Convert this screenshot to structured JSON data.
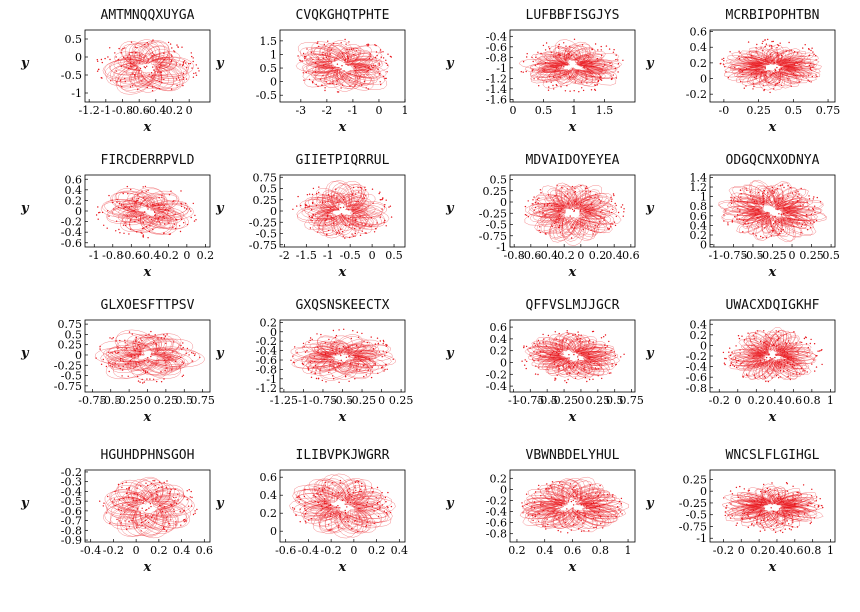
{
  "figure": {
    "accent_color": "#e8161c",
    "axis_color": "#000000",
    "background": "#ffffff"
  },
  "chart_data": [
    {
      "type": "scatter",
      "title": "AMTMNQQXUYGA",
      "xlabel": "x",
      "ylabel": "y",
      "xlim": [
        -1.25,
        0.25
      ],
      "ylim": [
        -1.25,
        0.75
      ],
      "xticks": [
        "-1.2",
        "-1",
        "-0.8",
        "-0.6",
        "-0.4",
        "-0.2",
        "0"
      ],
      "yticks": [
        "0.5",
        "0",
        "-0.5",
        "-1"
      ],
      "series": [
        {
          "color": "#e8161c"
        }
      ]
    },
    {
      "type": "scatter",
      "title": "CVQKGHQTPHTE",
      "xlabel": "x",
      "ylabel": "y",
      "xlim": [
        -3.8,
        1.0
      ],
      "ylim": [
        -0.75,
        1.9
      ],
      "xticks": [
        "-3",
        "-2",
        "-1",
        "0",
        "1"
      ],
      "yticks": [
        "1.5",
        "1",
        "0.5",
        "0",
        "-0.5"
      ],
      "series": [
        {
          "color": "#e8161c"
        }
      ]
    },
    {
      "type": "scatter",
      "title": "LUFBBFISGJYS",
      "xlabel": "x",
      "ylabel": "y",
      "xlim": [
        -0.05,
        2.0
      ],
      "ylim": [
        -1.65,
        -0.28
      ],
      "xticks": [
        "0",
        "0.5",
        "1",
        "1.5"
      ],
      "yticks": [
        "-0.4",
        "-0.6",
        "-0.8",
        "-1",
        "-1.2",
        "-1.4",
        "-1.6"
      ],
      "series": [
        {
          "color": "#e8161c"
        }
      ]
    },
    {
      "type": "scatter",
      "title": "MCRBIPOPHTBN",
      "xlabel": "x",
      "ylabel": "y",
      "xlim": [
        -0.1,
        0.8
      ],
      "ylim": [
        -0.3,
        0.62
      ],
      "xticks": [
        "-0",
        "0.5",
        "0.25",
        "0.75"
      ],
      "yticks": [
        "0.6",
        "0.4",
        "0.2",
        "0",
        "-0.2"
      ],
      "series": [
        {
          "color": "#e8161c"
        }
      ]
    },
    {
      "type": "scatter",
      "title": "FIRCDERRPVLD",
      "xlabel": "x",
      "ylabel": "y",
      "xlim": [
        -1.1,
        0.25
      ],
      "ylim": [
        -0.68,
        0.68
      ],
      "xticks": [
        "-1",
        "-0.8",
        "-0.6",
        "-0.4",
        "-0.2",
        "0",
        "0.2"
      ],
      "yticks": [
        "0.6",
        "0.4",
        "0.2",
        "0",
        "-0.2",
        "-0.4",
        "-0.6"
      ],
      "series": [
        {
          "color": "#e8161c"
        }
      ]
    },
    {
      "type": "scatter",
      "title": "GIIETPIQRRUL",
      "xlabel": "x",
      "ylabel": "y",
      "xlim": [
        -2.1,
        0.75
      ],
      "ylim": [
        -0.8,
        0.8
      ],
      "xticks": [
        "-2",
        "-1.5",
        "-1",
        "-0.5",
        "0",
        "0.5"
      ],
      "yticks": [
        "0.75",
        "0.5",
        "0.25",
        "0",
        "-0.25",
        "-0.5",
        "-0.75"
      ],
      "series": [
        {
          "color": "#e8161c"
        }
      ]
    },
    {
      "type": "scatter",
      "title": "MDVAIDOYEYEA",
      "xlabel": "x",
      "ylabel": "y",
      "xlim": [
        -0.85,
        0.65
      ],
      "ylim": [
        -1.0,
        0.6
      ],
      "xticks": [
        "-0.8",
        "-0.6",
        "-0.4",
        "-0.2",
        "0",
        "0.2",
        "0.4",
        "0.6"
      ],
      "yticks": [
        "0.5",
        "0.25",
        "0",
        "-0.25",
        "-0.5",
        "-0.75",
        "-1"
      ],
      "series": [
        {
          "color": "#e8161c"
        }
      ]
    },
    {
      "type": "scatter",
      "title": "ODGQCNXODNYA",
      "xlabel": "x",
      "ylabel": "y",
      "xlim": [
        -1.05,
        0.55
      ],
      "ylim": [
        -0.05,
        1.45
      ],
      "xticks": [
        "-1",
        "-0.75",
        "-0.5",
        "-0.25",
        "0",
        "0.25",
        "0.5"
      ],
      "yticks": [
        "1.4",
        "1.2",
        "1",
        "0.8",
        "0.6",
        "0.4",
        "0.2",
        "0"
      ],
      "series": [
        {
          "color": "#e8161c"
        }
      ]
    },
    {
      "type": "scatter",
      "title": "GLXOESFTTPSV",
      "xlabel": "x",
      "ylabel": "y",
      "xlim": [
        -0.85,
        0.85
      ],
      "ylim": [
        -0.9,
        0.85
      ],
      "xticks": [
        "-0.75",
        "-0.5",
        "-0.25",
        "0",
        "0.25",
        "0.5",
        "0.75"
      ],
      "yticks": [
        "0.75",
        "0.5",
        "0.25",
        "0",
        "-0.25",
        "-0.5",
        "-0.75"
      ],
      "series": [
        {
          "color": "#e8161c"
        }
      ]
    },
    {
      "type": "scatter",
      "title": "GXQSNSKEECTX",
      "xlabel": "x",
      "ylabel": "y",
      "xlim": [
        -1.3,
        0.3
      ],
      "ylim": [
        -1.28,
        0.25
      ],
      "xticks": [
        "-1.25",
        "-1",
        "-0.75",
        "-0.5",
        "-0.25",
        "0",
        "0.25"
      ],
      "yticks": [
        "0.2",
        "0",
        "-0.2",
        "-0.4",
        "-0.6",
        "-0.8",
        "-1",
        "-1.2"
      ],
      "series": [
        {
          "color": "#e8161c"
        }
      ]
    },
    {
      "type": "scatter",
      "title": "QFFVSLMJJGCR",
      "xlabel": "x",
      "ylabel": "y",
      "xlim": [
        -1.05,
        0.8
      ],
      "ylim": [
        -0.5,
        0.72
      ],
      "xticks": [
        "-1",
        "-0.75",
        "-0.5",
        "-0.25",
        "0",
        "0.25",
        "0.5",
        "0.75"
      ],
      "yticks": [
        "0.6",
        "0.4",
        "0.2",
        "0",
        "-0.2",
        "-0.4"
      ],
      "series": [
        {
          "color": "#e8161c"
        }
      ]
    },
    {
      "type": "scatter",
      "title": "UWACXDQIGKHF",
      "xlabel": "x",
      "ylabel": "y",
      "xlim": [
        -0.3,
        1.05
      ],
      "ylim": [
        -0.88,
        0.48
      ],
      "xticks": [
        "-0.2",
        "0",
        "0.2",
        "0.4",
        "0.6",
        "0.8",
        "1"
      ],
      "yticks": [
        "0.4",
        "0.2",
        "0",
        "-0.2",
        "-0.4",
        "-0.6",
        "-0.8"
      ],
      "series": [
        {
          "color": "#e8161c"
        }
      ]
    },
    {
      "type": "scatter",
      "title": "HGUHDPHNSGOH",
      "xlabel": "x",
      "ylabel": "y",
      "xlim": [
        -0.45,
        0.65
      ],
      "ylim": [
        -0.92,
        -0.18
      ],
      "xticks": [
        "-0.4",
        "-0.2",
        "0",
        "0.2",
        "0.4",
        "0.6"
      ],
      "yticks": [
        "-0.2",
        "-0.3",
        "-0.4",
        "-0.5",
        "-0.6",
        "-0.7",
        "-0.8",
        "-0.9"
      ],
      "series": [
        {
          "color": "#e8161c"
        }
      ]
    },
    {
      "type": "scatter",
      "title": "ILIBVPKJWGRR",
      "xlabel": "x",
      "ylabel": "y",
      "xlim": [
        -0.65,
        0.45
      ],
      "ylim": [
        -0.12,
        0.68
      ],
      "xticks": [
        "-0.6",
        "-0.4",
        "-0.2",
        "0",
        "0.2",
        "0.4"
      ],
      "yticks": [
        "0.6",
        "0.4",
        "0.2",
        "0"
      ],
      "series": [
        {
          "color": "#e8161c"
        }
      ]
    },
    {
      "type": "scatter",
      "title": "VBWNBDELYHUL",
      "xlabel": "x",
      "ylabel": "y",
      "xlim": [
        0.15,
        1.05
      ],
      "ylim": [
        -0.95,
        0.35
      ],
      "xticks": [
        "0.2",
        "0.4",
        "0.6",
        "0.8",
        "1"
      ],
      "yticks": [
        "0.2",
        "0",
        "-0.2",
        "-0.4",
        "-0.6",
        "-0.8"
      ],
      "series": [
        {
          "color": "#e8161c"
        }
      ]
    },
    {
      "type": "scatter",
      "title": "WNCSLFLGIHGL",
      "xlabel": "x",
      "ylabel": "y",
      "xlim": [
        -0.35,
        1.05
      ],
      "ylim": [
        -1.08,
        0.45
      ],
      "xticks": [
        "-0.2",
        "0",
        "0.2",
        "0.4",
        "0.6",
        "0.8",
        "1"
      ],
      "yticks": [
        "0.25",
        "0",
        "-0.25",
        "-0.5",
        "-0.75",
        "-1"
      ],
      "series": [
        {
          "color": "#e8161c"
        }
      ]
    }
  ]
}
